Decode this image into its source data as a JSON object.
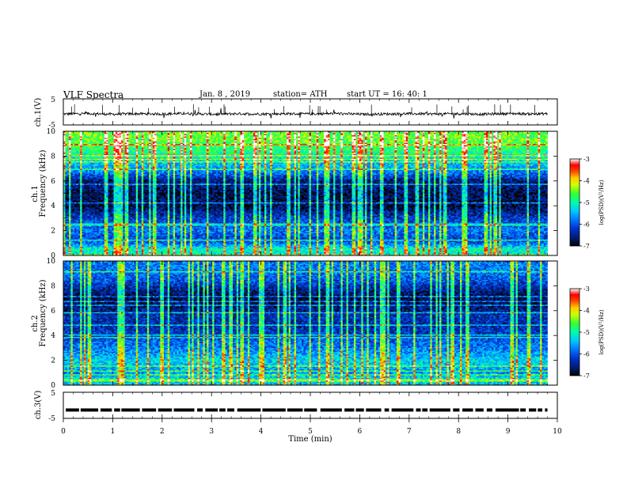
{
  "header": {
    "title": "VLF  Spectra",
    "date": "Jan.  8  , 2019",
    "station": "station= ATH",
    "start_ut": "start  UT  =   16: 40: 1"
  },
  "chart_data": [
    {
      "type": "line",
      "panel": "ch1-waveform",
      "ylabel": "ch.1(V)",
      "ytick_labels": [
        "5",
        "-5"
      ],
      "ylim": [
        -5,
        5
      ],
      "x": [
        0,
        0.5,
        1,
        1.5,
        2,
        2.5,
        3,
        3.5,
        4,
        4.5,
        5,
        5.5,
        6,
        6.5,
        7,
        7.5,
        8,
        8.5,
        9,
        9.5,
        9.8
      ],
      "values": [
        -0.8,
        -0.6,
        -0.9,
        -0.7,
        -0.8,
        -0.6,
        -0.9,
        -0.7,
        -0.8,
        -0.7,
        -0.8,
        -0.6,
        -0.9,
        -0.8,
        -0.7,
        -0.8,
        -0.7,
        -0.9,
        -0.6,
        -0.8,
        -0.7
      ],
      "color": "#000000"
    },
    {
      "type": "heatmap",
      "panel": "ch1-spectrogram",
      "ylabel_lines": [
        "ch.1",
        "Frequency  (kHz)"
      ],
      "yticks": [
        0,
        2,
        4,
        6,
        8,
        10
      ],
      "ylim": [
        0,
        10
      ],
      "xlim": [
        0,
        9.8
      ],
      "colorbar": {
        "label": "log(PSD)(V²/Hz)",
        "ticks": [
          "-3",
          "-4",
          "-5",
          "-6",
          "-7"
        ],
        "range": [
          -7,
          -3
        ]
      },
      "frequency_bands_khz": [
        0,
        0.5,
        1,
        1.5,
        2,
        2.5,
        3,
        3.5,
        4,
        4.5,
        5,
        5.5,
        6,
        6.5,
        7,
        7.5,
        8,
        8.5,
        9,
        9.5,
        10
      ],
      "mean_log_psd": [
        -5.3,
        -5.0,
        -5.9,
        -6.1,
        -5.8,
        -6.0,
        -6.2,
        -6.5,
        -6.8,
        -6.7,
        -6.8,
        -6.6,
        -6.6,
        -6.0,
        -5.6,
        -5.4,
        -5.1,
        -4.8,
        -4.6,
        -4.5,
        -4.5
      ]
    },
    {
      "type": "heatmap",
      "panel": "ch2-spectrogram",
      "ylabel_lines": [
        "ch.2",
        "Frequency  (kHz)"
      ],
      "yticks": [
        0,
        2,
        4,
        6,
        8,
        10
      ],
      "ylim": [
        0,
        10
      ],
      "xlim": [
        0,
        9.8
      ],
      "colorbar": {
        "label": "log(PSD)(V²/Hz)",
        "ticks": [
          "-3",
          "-4",
          "-5",
          "-6",
          "-7"
        ],
        "range": [
          -7,
          -3
        ]
      },
      "frequency_bands_khz": [
        0,
        0.5,
        1,
        1.5,
        2,
        2.5,
        3,
        3.5,
        4,
        4.5,
        5,
        5.5,
        6,
        6.5,
        7,
        7.5,
        8,
        8.5,
        9,
        9.5,
        10
      ],
      "mean_log_psd": [
        -5.5,
        -5.2,
        -5.7,
        -5.5,
        -5.3,
        -5.6,
        -5.8,
        -5.9,
        -6.2,
        -6.3,
        -6.4,
        -6.3,
        -6.5,
        -6.7,
        -6.8,
        -6.6,
        -6.3,
        -6.0,
        -5.9,
        -5.8,
        -5.8
      ]
    },
    {
      "type": "line",
      "panel": "ch3-waveform",
      "ylabel": "ch.3(V)",
      "ytick_labels": [
        "5",
        "-5"
      ],
      "ylim": [
        -5,
        5
      ],
      "x": [
        0,
        9.8
      ],
      "values": [
        -1.8,
        -1.8
      ],
      "color": "#000000"
    }
  ],
  "xaxis": {
    "label": "Time  (min)",
    "tick_labels": [
      "0",
      "1",
      "2",
      "3",
      "4",
      "5",
      "6",
      "7",
      "8",
      "9",
      "10"
    ],
    "xlim": [
      0,
      10
    ]
  },
  "colors": {
    "colormap": [
      "#000000",
      "#001a66",
      "#0033cc",
      "#0066ff",
      "#00b3ff",
      "#00ffcc",
      "#33ff33",
      "#ccff00",
      "#ffcc00",
      "#ff4400",
      "#ff0000",
      "#ffffff"
    ]
  }
}
